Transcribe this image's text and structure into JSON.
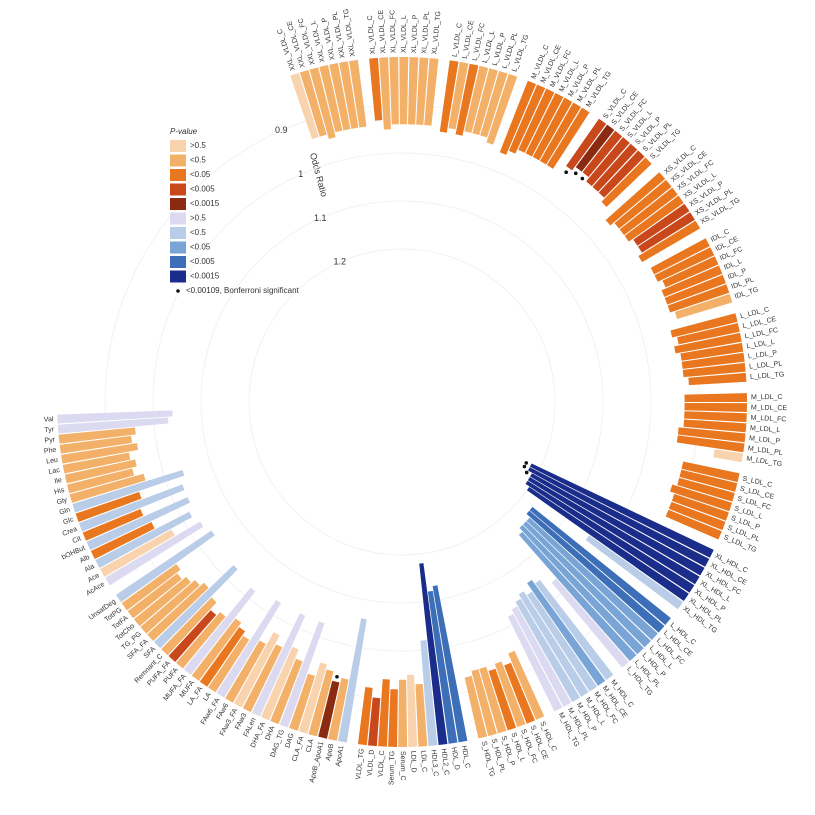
{
  "chart_data": {
    "type": "radial_bar",
    "axis_label": "Odds Ratio",
    "legend_title": "P-value",
    "legend": [
      {
        "label": ">0.5",
        "color": "#f9d3ad"
      },
      {
        "label": "<0.5",
        "color": "#f3b069"
      },
      {
        "label": "<0.05",
        "color": "#e8771f"
      },
      {
        "label": "<0.005",
        "color": "#c8471b"
      },
      {
        "label": "<0.0015",
        "color": "#8a2a10"
      },
      {
        "label": ">0.5",
        "color": "#dcdaf0"
      },
      {
        "label": "<0.5",
        "color": "#b9cce8"
      },
      {
        "label": "<0.05",
        "color": "#78a4d6"
      },
      {
        "label": "<0.005",
        "color": "#3d6fb8"
      },
      {
        "label": "<0.0015",
        "color": "#1b2d8a"
      }
    ],
    "significance_note": "<0.00109, Bonferroni significant",
    "ylim": [
      0.8,
      1.3
    ],
    "yticks": [
      0.9,
      1,
      1.1,
      1.2
    ],
    "categories": [
      "XXL_VLDL_C",
      "XXL_VLDL_CE",
      "XXL_VLDL_FC",
      "XXL_VLDL_L",
      "XXL_VLDL_P",
      "XXL_VLDL_PL",
      "XXL_VLDL_TG",
      null,
      "XL_VLDL_C",
      "XL_VLDL_CE",
      "XL_VLDL_FC",
      "XL_VLDL_L",
      "XL_VLDL_P",
      "XL_VLDL_PL",
      "XL_VLDL_TG",
      null,
      "L_VLDL_C",
      "L_VLDL_CE",
      "L_VLDL_FC",
      "L_VLDL_L",
      "L_VLDL_P",
      "L_VLDL_PL",
      "L_VLDL_TG",
      null,
      "M_VLDL_C",
      "M_VLDL_CE",
      "M_VLDL_FC",
      "M_VLDL_L",
      "M_VLDL_P",
      "M_VLDL_PL",
      "M_VLDL_TG",
      null,
      "S_VLDL_C",
      "S_VLDL_CE",
      "S_VLDL_FC",
      "S_VLDL_L",
      "S_VLDL_P",
      "S_VLDL_PL",
      "S_VLDL_TG",
      null,
      "XS_VLDL_C",
      "XS_VLDL_CE",
      "XS_VLDL_FC",
      "XS_VLDL_L",
      "XS_VLDL_P",
      "XS_VLDL_PL",
      "XS_VLDL_TG",
      null,
      "IDL_C",
      "IDL_CE",
      "IDL_FC",
      "IDL_L",
      "IDL_P",
      "IDL_PL",
      "IDL_TG",
      null,
      "L_LDL_C",
      "L_LDL_CE",
      "L_LDL_FC",
      "L_LDL_L",
      "L_LDL_P",
      "L_LDL_PL",
      "L_LDL_TG",
      null,
      "M_LDL_C",
      "M_LDL_CE",
      "M_LDL_FC",
      "M_LDL_L",
      "M_LDL_P",
      "M_LDL_PL",
      "M_LDL_TG",
      null,
      "S_LDL_C",
      "S_LDL_CE",
      "S_LDL_FC",
      "S_LDL_L",
      "S_LDL_P",
      "S_LDL_PL",
      "S_LDL_TG",
      null,
      "XL_HDL_C",
      "XL_HDL_CE",
      "XL_HDL_FC",
      "XL_HDL_L",
      "XL_HDL_P",
      "XL_HDL_PL",
      "XL_HDL_TG",
      null,
      "L_HDL_C",
      "L_HDL_CE",
      "L_HDL_FC",
      "L_HDL_L",
      "L_HDL_P",
      "L_HDL_PL",
      "L_HDL_TG",
      null,
      "M_HDL_C",
      "M_HDL_CE",
      "M_HDL_FC",
      "M_HDL_L",
      "M_HDL_P",
      "M_HDL_PL",
      "M_HDL_TG",
      null,
      "S_HDL_C",
      "S_HDL_CE",
      "S_HDL_FC",
      "S_HDL_L",
      "S_HDL_P",
      "S_HDL_PL",
      "S_HDL_TG",
      null,
      "HDL_C",
      "HDL_D",
      "HDL2_C",
      "HDL3_C",
      "LDL_C",
      "LDL_D",
      "Serum_C",
      "Serum_TG",
      "VLDL_C",
      "VLDL_D",
      "VLDL_TG",
      null,
      "ApoA1",
      "ApoB",
      "ApoB_ApoA1",
      "CLA",
      "CLA_FA",
      "DAG",
      "DAG_TG",
      "DHA",
      "DHA_FA",
      "FALen",
      "FAw3",
      "FAw3_FA",
      "FAw6",
      "FAw6_FA",
      "LA",
      "LA_FA",
      "MUFA",
      "MUFA_FA",
      "PUFA",
      "PUFA_FA",
      "Remnant_C",
      "SFA",
      "SFA_FA",
      "TG_PG",
      "TotCho",
      "TotFA",
      "TotPG",
      "UnsatDeg",
      null,
      "AcAce",
      "Ace",
      "Ala",
      "Alb",
      "bOHBut",
      "Cit",
      "Crea",
      "Glc",
      "Gln",
      "Gly",
      "His",
      "Ile",
      "Lac",
      "Leu",
      "Phe",
      "Pyr",
      "Tyr",
      "Val"
    ],
    "values": [
      0.94,
      0.94,
      0.95,
      0.94,
      0.94,
      0.94,
      0.94,
      null,
      0.93,
      0.95,
      0.94,
      0.94,
      0.94,
      0.94,
      0.94,
      null,
      0.95,
      0.94,
      0.95,
      0.94,
      0.94,
      0.94,
      0.95,
      null,
      0.96,
      0.95,
      0.94,
      0.94,
      0.94,
      0.94,
      0.94,
      null,
      0.92,
      0.91,
      0.91,
      0.92,
      0.92,
      0.92,
      0.93,
      null,
      0.95,
      0.94,
      0.94,
      0.94,
      0.93,
      0.93,
      0.94,
      null,
      0.93,
      0.93,
      0.92,
      0.93,
      0.93,
      0.93,
      0.92,
      null,
      0.94,
      0.93,
      0.94,
      0.93,
      0.93,
      0.93,
      0.92,
      null,
      0.93,
      0.93,
      0.93,
      0.93,
      0.94,
      0.94,
      0.86,
      null,
      0.92,
      0.92,
      0.92,
      0.93,
      0.92,
      0.92,
      0.92,
      null,
      1.22,
      1.22,
      1.21,
      1.21,
      1.21,
      1.2,
      1.04,
      null,
      1.17,
      1.17,
      1.16,
      1.16,
      1.16,
      1.15,
      1.03,
      null,
      1.05,
      1.06,
      1.04,
      1.05,
      1.04,
      1.03,
      1.02,
      null,
      0.95,
      0.93,
      0.94,
      0.93,
      0.94,
      0.94,
      0.93,
      null,
      1.13,
      1.12,
      1.18,
      1.02,
      0.93,
      0.95,
      0.94,
      0.92,
      0.94,
      0.9,
      0.92,
      null,
      1.06,
      0.93,
      0.92,
      0.94,
      0.95,
      0.92,
      1.03,
      0.94,
      0.96,
      1.03,
      0.95,
      0.97,
      0.94,
      1.03,
      0.93,
      0.94,
      0.95,
      1.02,
      0.94,
      0.93,
      0.95,
      1.03,
      0.96,
      0.95,
      0.94,
      0.93,
      0.94,
      1.04,
      null,
      1.03,
      0.97,
      1.02,
      0.94,
      1.03,
      0.93,
      1.03,
      0.94,
      1.04,
      0.96,
      0.94,
      0.95,
      0.94,
      0.96,
      0.95,
      0.96,
      1.03,
      1.04
    ],
    "p_class": [
      0,
      1,
      1,
      1,
      1,
      1,
      1,
      null,
      2,
      1,
      1,
      1,
      1,
      1,
      1,
      null,
      2,
      1,
      2,
      1,
      1,
      1,
      1,
      null,
      2,
      2,
      2,
      2,
      2,
      2,
      2,
      null,
      3,
      4,
      3,
      3,
      3,
      3,
      2,
      null,
      2,
      2,
      2,
      2,
      3,
      3,
      2,
      null,
      2,
      2,
      2,
      2,
      2,
      2,
      1,
      null,
      2,
      2,
      2,
      2,
      2,
      2,
      2,
      null,
      2,
      2,
      2,
      2,
      2,
      2,
      0,
      null,
      2,
      2,
      2,
      2,
      2,
      2,
      2,
      null,
      9,
      9,
      9,
      9,
      9,
      9,
      6,
      null,
      8,
      8,
      7,
      7,
      7,
      7,
      5,
      null,
      6,
      7,
      6,
      6,
      6,
      5,
      5,
      null,
      1,
      2,
      1,
      2,
      1,
      1,
      1,
      null,
      8,
      8,
      9,
      6,
      1,
      0,
      1,
      2,
      2,
      3,
      2,
      null,
      6,
      1,
      4,
      1,
      0,
      1,
      5,
      1,
      0,
      5,
      1,
      0,
      1,
      5,
      1,
      2,
      1,
      5,
      1,
      3,
      1,
      6,
      1,
      1,
      1,
      1,
      1,
      6,
      null,
      5,
      0,
      6,
      2,
      6,
      2,
      6,
      2,
      6,
      1,
      1,
      1,
      1,
      1,
      1,
      1,
      5,
      5
    ],
    "significant": [
      32,
      33,
      34,
      80,
      81,
      82,
      126
    ]
  }
}
